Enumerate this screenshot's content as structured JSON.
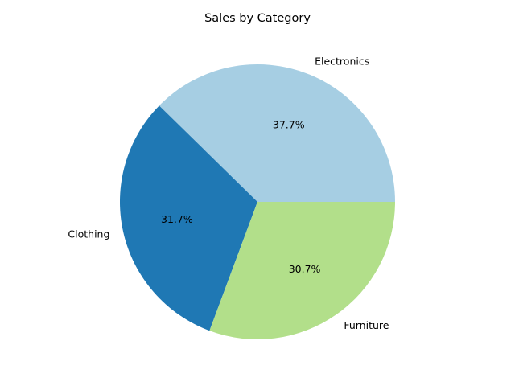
{
  "chart_data": {
    "type": "pie",
    "title": "Sales by Category",
    "slices": [
      {
        "label": "Electronics",
        "value": 37.7,
        "pct_label": "37.7%",
        "color": "#a6cee3"
      },
      {
        "label": "Clothing",
        "value": 31.7,
        "pct_label": "31.7%",
        "color": "#1f78b4"
      },
      {
        "label": "Furniture",
        "value": 30.7,
        "pct_label": "30.7%",
        "color": "#b2df8a"
      }
    ],
    "start_angle_deg": 0,
    "direction": "counterclockwise",
    "legend": "none"
  }
}
